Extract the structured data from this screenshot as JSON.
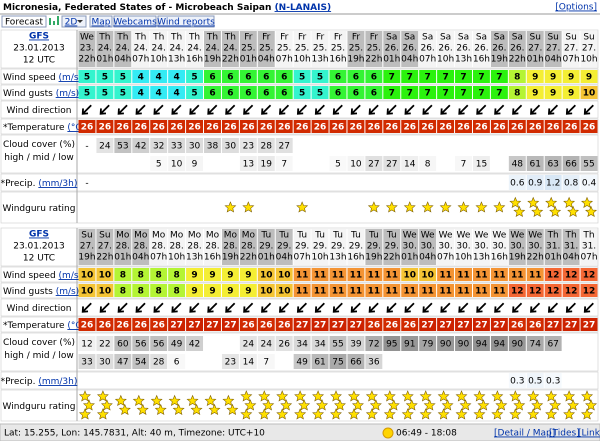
{
  "header": {
    "title": "Micronesia, Federated States of - Microbeach Saipan",
    "station": "(N-LANAIS)",
    "options": "[Options]"
  },
  "tabs": [
    "Forecast",
    "2D",
    "Map",
    "Webcams",
    "Wind reports"
  ],
  "labels": {
    "wind_speed": "Wind speed",
    "wind_gusts": "Wind gusts",
    "speed_unit": "(m/s)",
    "wind_direction": "Wind direction",
    "temperature": "*Temperature",
    "temp_unit": "(°C)",
    "cloud": "Cloud cover (%)",
    "cloud_sub": "high / mid / low",
    "precip": "*Precip.",
    "precip_unit": "(mm/3h)",
    "rating": "Windguru rating"
  },
  "tables": [
    {
      "model": "GFS",
      "date": "23.01.2013",
      "time": "12 UTC",
      "days": [
        "We",
        "Th",
        "Th",
        "Th",
        "Th",
        "Th",
        "Th",
        "Th",
        "Th",
        "Fr",
        "Fr",
        "Fr",
        "Fr",
        "Fr",
        "Fr",
        "Fr",
        "Fr",
        "Sa",
        "Sa",
        "Sa",
        "Sa",
        "Sa",
        "Sa",
        "Sa",
        "Sa",
        "Su",
        "Su",
        "Su",
        "Su"
      ],
      "dates": [
        "23.",
        "24.",
        "24.",
        "24.",
        "24.",
        "24.",
        "24.",
        "24.",
        "24.",
        "25.",
        "25.",
        "25.",
        "25.",
        "25.",
        "25.",
        "25.",
        "25.",
        "26.",
        "26.",
        "26.",
        "26.",
        "26.",
        "26.",
        "26.",
        "26.",
        "27.",
        "27.",
        "27.",
        "27."
      ],
      "hours": [
        "22h",
        "01h",
        "04h",
        "07h",
        "10h",
        "13h",
        "16h",
        "19h",
        "22h",
        "01h",
        "04h",
        "07h",
        "10h",
        "13h",
        "16h",
        "19h",
        "22h",
        "01h",
        "04h",
        "07h",
        "10h",
        "13h",
        "16h",
        "19h",
        "22h",
        "01h",
        "04h",
        "07h",
        "10h"
      ],
      "wind_speed": [
        5,
        5,
        5,
        4,
        4,
        4,
        5,
        6,
        6,
        6,
        6,
        6,
        5,
        5,
        6,
        6,
        6,
        7,
        7,
        7,
        7,
        7,
        7,
        7,
        8,
        9,
        9,
        9,
        9
      ],
      "wind_gusts": [
        5,
        5,
        5,
        4,
        4,
        4,
        5,
        6,
        6,
        6,
        6,
        6,
        5,
        5,
        6,
        6,
        6,
        7,
        7,
        7,
        7,
        7,
        7,
        7,
        8,
        9,
        9,
        9,
        10
      ],
      "wind_direction": [
        45,
        45,
        45,
        45,
        45,
        45,
        45,
        45,
        45,
        45,
        45,
        45,
        45,
        45,
        45,
        45,
        45,
        45,
        45,
        45,
        45,
        45,
        45,
        45,
        45,
        45,
        45,
        45,
        45
      ],
      "temperature": [
        26,
        26,
        26,
        26,
        26,
        26,
        26,
        26,
        26,
        26,
        26,
        26,
        26,
        26,
        26,
        26,
        26,
        26,
        26,
        26,
        26,
        26,
        26,
        26,
        26,
        26,
        26,
        26,
        26
      ],
      "cloud_rows": [
        [
          "-",
          24,
          53,
          42,
          32,
          33,
          30,
          38,
          30,
          23,
          28,
          27,
          null,
          null,
          null,
          null,
          null,
          null,
          null,
          null,
          null,
          null,
          null,
          null,
          null,
          null,
          null,
          null,
          null
        ],
        [
          null,
          null,
          null,
          null,
          5,
          10,
          9,
          null,
          null,
          13,
          19,
          7,
          null,
          null,
          5,
          10,
          27,
          27,
          14,
          8,
          null,
          7,
          15,
          null,
          48,
          61,
          63,
          66,
          55
        ]
      ],
      "precip": [
        "-",
        null,
        null,
        null,
        null,
        null,
        null,
        null,
        null,
        null,
        null,
        null,
        null,
        null,
        null,
        null,
        null,
        null,
        null,
        null,
        null,
        null,
        null,
        null,
        0.6,
        0.9,
        1.2,
        0.8,
        0.4
      ],
      "rating": [
        0,
        0,
        0,
        0,
        0,
        0,
        0,
        0,
        1,
        1,
        0,
        0,
        1,
        0,
        0,
        0,
        1,
        1,
        1,
        1,
        1,
        1,
        1,
        1,
        2,
        2,
        2,
        2,
        2
      ]
    },
    {
      "model": "GFS",
      "date": "23.01.2013",
      "time": "12 UTC",
      "days": [
        "Su",
        "Su",
        "Mo",
        "Mo",
        "Mo",
        "Mo",
        "Mo",
        "Mo",
        "Mo",
        "Mo",
        "Tu",
        "Tu",
        "Tu",
        "Tu",
        "Tu",
        "Tu",
        "Tu",
        "Tu",
        "We",
        "We",
        "We",
        "We",
        "We",
        "We",
        "We",
        "We",
        "Th",
        "Th",
        "Th"
      ],
      "dates": [
        "27.",
        "27.",
        "28.",
        "28.",
        "28.",
        "28.",
        "28.",
        "28.",
        "28.",
        "28.",
        "29.",
        "29.",
        "29.",
        "29.",
        "29.",
        "29.",
        "29.",
        "29.",
        "30.",
        "30.",
        "30.",
        "30.",
        "30.",
        "30.",
        "30.",
        "30.",
        "31.",
        "31.",
        "31."
      ],
      "hours": [
        "19h",
        "22h",
        "01h",
        "04h",
        "07h",
        "10h",
        "13h",
        "16h",
        "19h",
        "22h",
        "01h",
        "04h",
        "07h",
        "10h",
        "13h",
        "16h",
        "19h",
        "22h",
        "01h",
        "04h",
        "07h",
        "10h",
        "13h",
        "16h",
        "19h",
        "22h",
        "01h",
        "04h",
        "07h"
      ],
      "wind_speed": [
        10,
        10,
        8,
        8,
        8,
        8,
        9,
        9,
        9,
        9,
        10,
        10,
        11,
        11,
        11,
        11,
        11,
        11,
        10,
        10,
        11,
        11,
        11,
        11,
        11,
        11,
        12,
        12,
        12
      ],
      "wind_gusts": [
        10,
        10,
        8,
        8,
        8,
        8,
        9,
        9,
        9,
        9,
        10,
        10,
        11,
        11,
        11,
        11,
        11,
        11,
        11,
        11,
        11,
        11,
        11,
        11,
        12,
        12,
        12,
        12,
        12
      ],
      "wind_direction": [
        45,
        45,
        45,
        45,
        45,
        45,
        45,
        45,
        45,
        45,
        45,
        45,
        45,
        45,
        45,
        45,
        45,
        45,
        45,
        45,
        45,
        45,
        45,
        45,
        45,
        45,
        45,
        45,
        45
      ],
      "temperature": [
        26,
        26,
        26,
        26,
        26,
        27,
        27,
        27,
        27,
        26,
        26,
        26,
        27,
        27,
        27,
        27,
        26,
        26,
        26,
        27,
        27,
        27,
        27,
        27,
        26,
        26,
        27,
        27,
        27
      ],
      "cloud_rows": [
        [
          12,
          22,
          60,
          56,
          56,
          49,
          42,
          null,
          null,
          24,
          24,
          26,
          34,
          34,
          55,
          39,
          72,
          95,
          91,
          79,
          90,
          90,
          94,
          94,
          90,
          74,
          67,
          null,
          null
        ],
        [
          33,
          30,
          47,
          54,
          28,
          6,
          null,
          null,
          23,
          14,
          7,
          null,
          49,
          61,
          75,
          66,
          36,
          null,
          null,
          null,
          null,
          null,
          null,
          null,
          null,
          null,
          null,
          null,
          null
        ]
      ],
      "precip": [
        null,
        null,
        null,
        null,
        null,
        null,
        null,
        null,
        null,
        null,
        null,
        null,
        null,
        null,
        null,
        null,
        null,
        null,
        null,
        null,
        null,
        null,
        null,
        null,
        0.3,
        0.5,
        0.3,
        null,
        null
      ],
      "rating": [
        3,
        3,
        2,
        2,
        2,
        2,
        2,
        2,
        2,
        3,
        3,
        3,
        3,
        3,
        3,
        3,
        3,
        3,
        3,
        3,
        3,
        3,
        3,
        3,
        3,
        3,
        3,
        3,
        3
      ]
    }
  ],
  "footer": {
    "location": "Lat: 15.255, Lon: 145.7831, Alt: 40 m, Timezone: UTC+10",
    "sun": "06:49 - 18:08",
    "links": [
      "[Detail / Map]",
      "[Tides]",
      "[Link]"
    ]
  }
}
